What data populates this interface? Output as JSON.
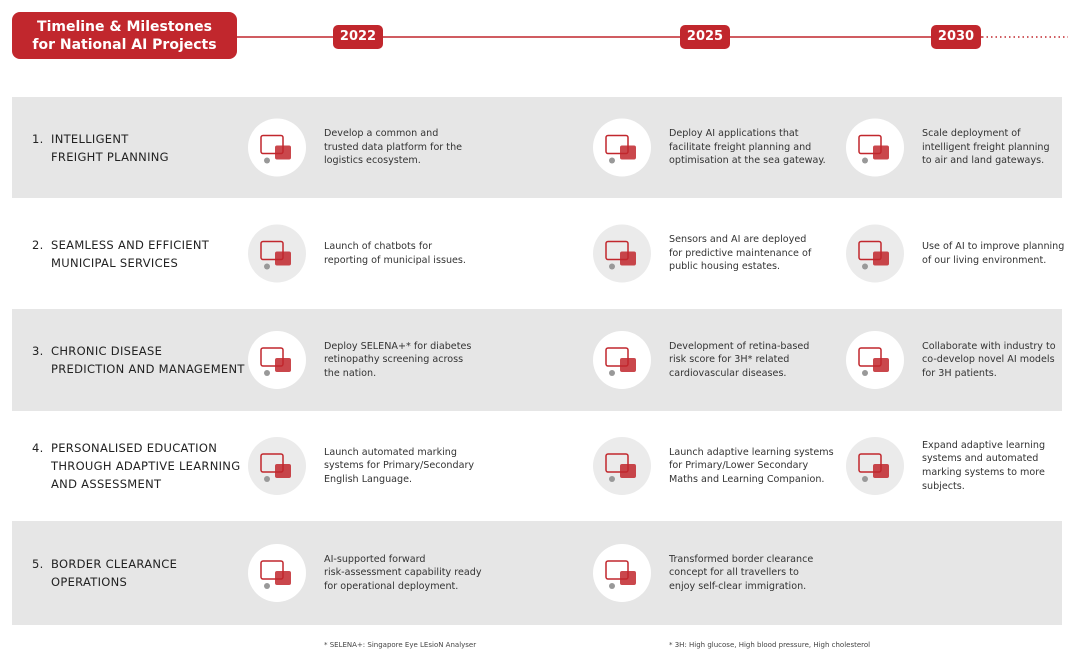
{
  "header": {
    "title": [
      "Timeline & Milestones",
      "for National AI Projects"
    ],
    "years": [
      "2022",
      "2025",
      "2030"
    ]
  },
  "projects": [
    {
      "number": "1.",
      "name": [
        "INTELLIGENT",
        "FREIGHT PLANNING"
      ],
      "milestones": [
        [
          "Develop a common and",
          "trusted data platform for the",
          "logistics ecosystem."
        ],
        [
          "Deploy AI applications that",
          "facilitate freight planning and",
          "optimisation at the sea gateway."
        ],
        [
          "Scale deployment of",
          "intelligent freight planning",
          "to air and land gateways."
        ]
      ]
    },
    {
      "number": "2.",
      "name": [
        "SEAMLESS AND EFFICIENT",
        "MUNICIPAL SERVICES"
      ],
      "milestones": [
        [
          "Launch of chatbots for",
          "reporting of municipal issues."
        ],
        [
          "Sensors and AI are deployed",
          "for predictive maintenance of",
          "public housing estates."
        ],
        [
          "Use of AI to improve planning",
          "of our living environment."
        ]
      ]
    },
    {
      "number": "3.",
      "name": [
        "CHRONIC DISEASE",
        "PREDICTION AND MANAGEMENT"
      ],
      "milestones": [
        [
          "Deploy SELENA+* for diabetes",
          "retinopathy screening across",
          "the nation."
        ],
        [
          "Development of retina-based",
          "risk score for 3H* related",
          "cardiovascular diseases."
        ],
        [
          "Collaborate with industry to",
          "co-develop novel AI models",
          "for 3H patients."
        ]
      ]
    },
    {
      "number": "4.",
      "name": [
        "PERSONALISED EDUCATION",
        "THROUGH ADAPTIVE LEARNING",
        "AND ASSESSMENT"
      ],
      "milestones": [
        [
          "Launch automated marking",
          "systems for Primary/Secondary",
          "English Language."
        ],
        [
          "Launch adaptive learning systems",
          "for Primary/Lower Secondary",
          "Maths and Learning Companion."
        ],
        [
          "Expand adaptive learning",
          "systems and automated",
          "marking systems to more",
          "subjects."
        ]
      ]
    },
    {
      "number": "5.",
      "name": [
        "BORDER CLEARANCE",
        "OPERATIONS"
      ],
      "milestones": [
        [
          "AI-supported forward",
          "risk-assessment capability ready",
          "for operational deployment."
        ],
        [
          "Transformed border clearance",
          "concept for all travellers to",
          "enjoy self-clear immigration."
        ]
      ]
    }
  ],
  "footnotes": [
    "* SELENA+: Singapore Eye LEsioN Analyser",
    "* 3H: High glucose, High blood pressure, High cholesterol"
  ]
}
